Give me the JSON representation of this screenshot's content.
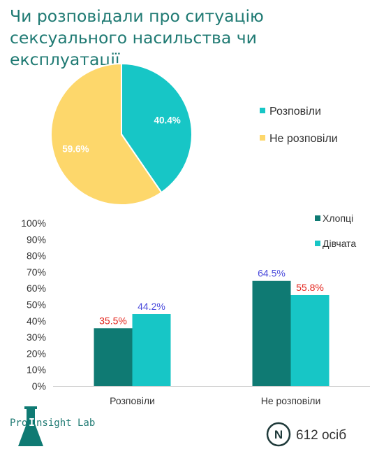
{
  "title": "Чи розповідали про ситуацію сексуального насильства чи експлуатації",
  "colors": {
    "teal_light": "#17c6c6",
    "yellow": "#fdd76b",
    "teal_dark": "#0f7a73",
    "label_red": "#e3231b",
    "label_blue": "#4b4bdc",
    "title": "#1f7a73"
  },
  "chart_data": [
    {
      "type": "pie",
      "labels": [
        "Розповіли",
        "Не розповіли"
      ],
      "values": [
        40.4,
        59.6
      ],
      "data_labels": [
        "40.4%",
        "59.6%"
      ],
      "colors": [
        "#17c6c6",
        "#fdd76b"
      ],
      "legend": {
        "placement": "right",
        "entries": [
          "Розповіли",
          "Не розповіли"
        ]
      }
    },
    {
      "type": "bar",
      "categories": [
        "Розповіли",
        "Не розповіли"
      ],
      "series": [
        {
          "name": "Хлопці",
          "values": [
            35.5,
            64.5
          ],
          "labels": [
            "35.5%",
            "64.5%"
          ],
          "color": "#0f7a73"
        },
        {
          "name": "Дівчата",
          "values": [
            44.2,
            55.8
          ],
          "labels": [
            "44.2%",
            "55.8%"
          ],
          "color": "#17c6c6"
        }
      ],
      "data_label_colors": {
        "Розповіли": [
          "#e3231b",
          "#4b4bdc"
        ],
        "Не розповіли": [
          "#4b4bdc",
          "#e3231b"
        ]
      },
      "ylim": [
        0,
        100
      ],
      "yticks": [
        "0%",
        "10%",
        "20%",
        "30%",
        "40%",
        "50%",
        "60%",
        "70%",
        "80%",
        "90%",
        "100%"
      ],
      "grid": false,
      "legend": {
        "placement": "top-right",
        "entries": [
          "Хлопці",
          "Дівчата"
        ]
      }
    }
  ],
  "footer": {
    "logo_left": "Pro",
    "logo_mid": "I",
    "logo_right": "nsight Lab",
    "n_symbol": "N",
    "n_text": "612 осіб"
  }
}
